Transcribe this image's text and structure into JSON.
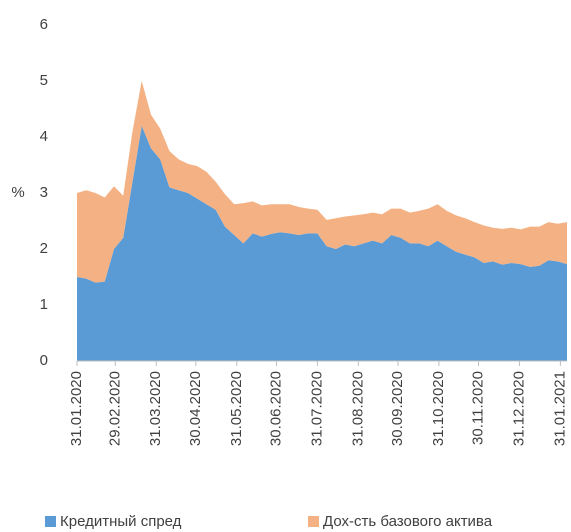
{
  "chart_data": {
    "type": "stacked_area",
    "y_label": "%",
    "x": [
      "31.01.2020",
      "07.02.2020",
      "14.02.2020",
      "21.02.2020",
      "28.02.2020",
      "06.03.2020",
      "13.03.2020",
      "20.03.2020",
      "27.03.2020",
      "03.04.2020",
      "10.04.2020",
      "17.04.2020",
      "24.04.2020",
      "01.05.2020",
      "08.05.2020",
      "15.05.2020",
      "22.05.2020",
      "29.05.2020",
      "05.06.2020",
      "12.06.2020",
      "19.06.2020",
      "26.06.2020",
      "03.07.2020",
      "10.07.2020",
      "17.07.2020",
      "24.07.2020",
      "31.07.2020",
      "07.08.2020",
      "14.08.2020",
      "21.08.2020",
      "28.08.2020",
      "04.09.2020",
      "11.09.2020",
      "18.09.2020",
      "25.09.2020",
      "02.10.2020",
      "09.10.2020",
      "16.10.2020",
      "23.10.2020",
      "30.10.2020",
      "06.11.2020",
      "13.11.2020",
      "20.11.2020",
      "27.11.2020",
      "04.12.2020",
      "11.12.2020",
      "18.12.2020",
      "25.12.2020",
      "01.01.2021",
      "08.01.2021",
      "15.01.2021",
      "22.01.2021",
      "29.01.2021",
      "05.02.2021"
    ],
    "series": [
      {
        "name": "Кредитный спред",
        "color": "#5b9bd5",
        "values": [
          1.5,
          1.47,
          1.4,
          1.42,
          2.0,
          2.2,
          3.2,
          4.2,
          3.8,
          3.6,
          3.1,
          3.05,
          3.0,
          2.9,
          2.8,
          2.7,
          2.4,
          2.25,
          2.1,
          2.28,
          2.22,
          2.27,
          2.3,
          2.28,
          2.25,
          2.28,
          2.28,
          2.05,
          2.0,
          2.08,
          2.05,
          2.1,
          2.15,
          2.1,
          2.25,
          2.2,
          2.1,
          2.1,
          2.05,
          2.15,
          2.05,
          1.95,
          1.9,
          1.85,
          1.75,
          1.78,
          1.72,
          1.75,
          1.73,
          1.68,
          1.7,
          1.8,
          1.78,
          1.73
        ]
      },
      {
        "name": "Дох-сть базового актива",
        "color": "#f4b183",
        "values": [
          1.5,
          1.58,
          1.6,
          1.5,
          1.12,
          0.75,
          0.9,
          0.8,
          0.6,
          0.55,
          0.65,
          0.55,
          0.52,
          0.58,
          0.58,
          0.5,
          0.58,
          0.55,
          0.72,
          0.57,
          0.56,
          0.53,
          0.5,
          0.52,
          0.5,
          0.44,
          0.42,
          0.47,
          0.55,
          0.5,
          0.55,
          0.52,
          0.5,
          0.52,
          0.47,
          0.52,
          0.55,
          0.58,
          0.67,
          0.65,
          0.63,
          0.65,
          0.65,
          0.63,
          0.67,
          0.6,
          0.64,
          0.63,
          0.62,
          0.72,
          0.7,
          0.68,
          0.67,
          0.75
        ]
      }
    ],
    "xlim": [
      "31.01.2020",
      "05.02.2021"
    ],
    "xticks": [
      "31.01.2020",
      "29.02.2020",
      "31.03.2020",
      "30.04.2020",
      "31.05.2020",
      "30.06.2020",
      "31.07.2020",
      "31.08.2020",
      "30.09.2020",
      "31.10.2020",
      "30.11.2020",
      "31.12.2020",
      "31.01.2021"
    ],
    "ylim": [
      0,
      6
    ],
    "yticks": [
      0,
      1,
      2,
      3,
      4,
      5,
      6
    ],
    "legend": "bottom"
  }
}
